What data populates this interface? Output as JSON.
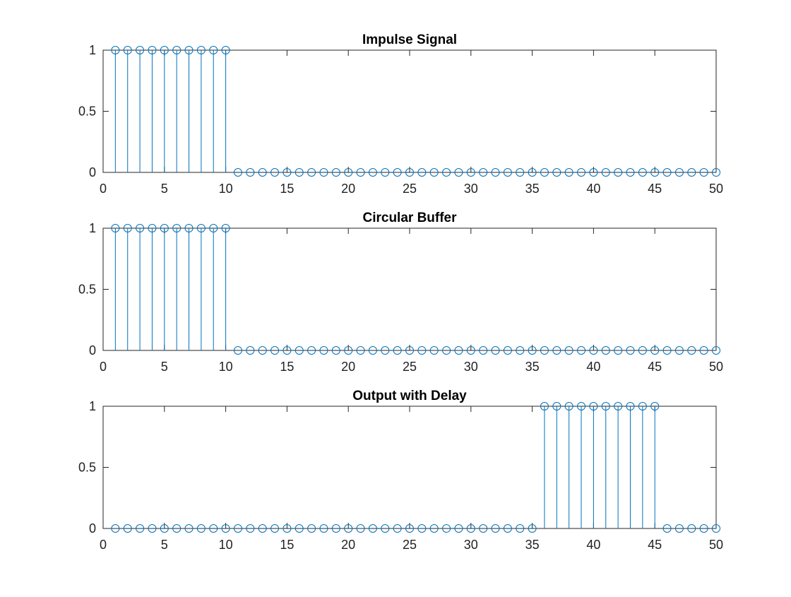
{
  "colors": {
    "stem": "#0072BD",
    "axis": "#262626",
    "background": "#ffffff"
  },
  "chart_data": [
    {
      "type": "stem",
      "title": "Impulse Signal",
      "xlim": [
        0,
        50
      ],
      "ylim": [
        0,
        1
      ],
      "xticks": [
        0,
        5,
        10,
        15,
        20,
        25,
        30,
        35,
        40,
        45,
        50
      ],
      "yticks": [
        0,
        0.5,
        1
      ],
      "x": [
        1,
        2,
        3,
        4,
        5,
        6,
        7,
        8,
        9,
        10,
        11,
        12,
        13,
        14,
        15,
        16,
        17,
        18,
        19,
        20,
        21,
        22,
        23,
        24,
        25,
        26,
        27,
        28,
        29,
        30,
        31,
        32,
        33,
        34,
        35,
        36,
        37,
        38,
        39,
        40,
        41,
        42,
        43,
        44,
        45,
        46,
        47,
        48,
        49,
        50
      ],
      "y": [
        1,
        1,
        1,
        1,
        1,
        1,
        1,
        1,
        1,
        1,
        0,
        0,
        0,
        0,
        0,
        0,
        0,
        0,
        0,
        0,
        0,
        0,
        0,
        0,
        0,
        0,
        0,
        0,
        0,
        0,
        0,
        0,
        0,
        0,
        0,
        0,
        0,
        0,
        0,
        0,
        0,
        0,
        0,
        0,
        0,
        0,
        0,
        0,
        0,
        0
      ]
    },
    {
      "type": "stem",
      "title": "Circular Buffer",
      "xlim": [
        0,
        50
      ],
      "ylim": [
        0,
        1
      ],
      "xticks": [
        0,
        5,
        10,
        15,
        20,
        25,
        30,
        35,
        40,
        45,
        50
      ],
      "yticks": [
        0,
        0.5,
        1
      ],
      "x": [
        1,
        2,
        3,
        4,
        5,
        6,
        7,
        8,
        9,
        10,
        11,
        12,
        13,
        14,
        15,
        16,
        17,
        18,
        19,
        20,
        21,
        22,
        23,
        24,
        25,
        26,
        27,
        28,
        29,
        30,
        31,
        32,
        33,
        34,
        35,
        36,
        37,
        38,
        39,
        40,
        41,
        42,
        43,
        44,
        45,
        46,
        47,
        48,
        49,
        50
      ],
      "y": [
        1,
        1,
        1,
        1,
        1,
        1,
        1,
        1,
        1,
        1,
        0,
        0,
        0,
        0,
        0,
        0,
        0,
        0,
        0,
        0,
        0,
        0,
        0,
        0,
        0,
        0,
        0,
        0,
        0,
        0,
        0,
        0,
        0,
        0,
        0,
        0,
        0,
        0,
        0,
        0,
        0,
        0,
        0,
        0,
        0,
        0,
        0,
        0,
        0,
        0
      ]
    },
    {
      "type": "stem",
      "title": "Output with Delay",
      "xlim": [
        0,
        50
      ],
      "ylim": [
        0,
        1
      ],
      "xticks": [
        0,
        5,
        10,
        15,
        20,
        25,
        30,
        35,
        40,
        45,
        50
      ],
      "yticks": [
        0,
        0.5,
        1
      ],
      "x": [
        1,
        2,
        3,
        4,
        5,
        6,
        7,
        8,
        9,
        10,
        11,
        12,
        13,
        14,
        15,
        16,
        17,
        18,
        19,
        20,
        21,
        22,
        23,
        24,
        25,
        26,
        27,
        28,
        29,
        30,
        31,
        32,
        33,
        34,
        35,
        36,
        37,
        38,
        39,
        40,
        41,
        42,
        43,
        44,
        45,
        46,
        47,
        48,
        49,
        50
      ],
      "y": [
        0,
        0,
        0,
        0,
        0,
        0,
        0,
        0,
        0,
        0,
        0,
        0,
        0,
        0,
        0,
        0,
        0,
        0,
        0,
        0,
        0,
        0,
        0,
        0,
        0,
        0,
        0,
        0,
        0,
        0,
        0,
        0,
        0,
        0,
        0,
        1,
        1,
        1,
        1,
        1,
        1,
        1,
        1,
        1,
        1,
        0,
        0,
        0,
        0,
        0
      ]
    }
  ]
}
